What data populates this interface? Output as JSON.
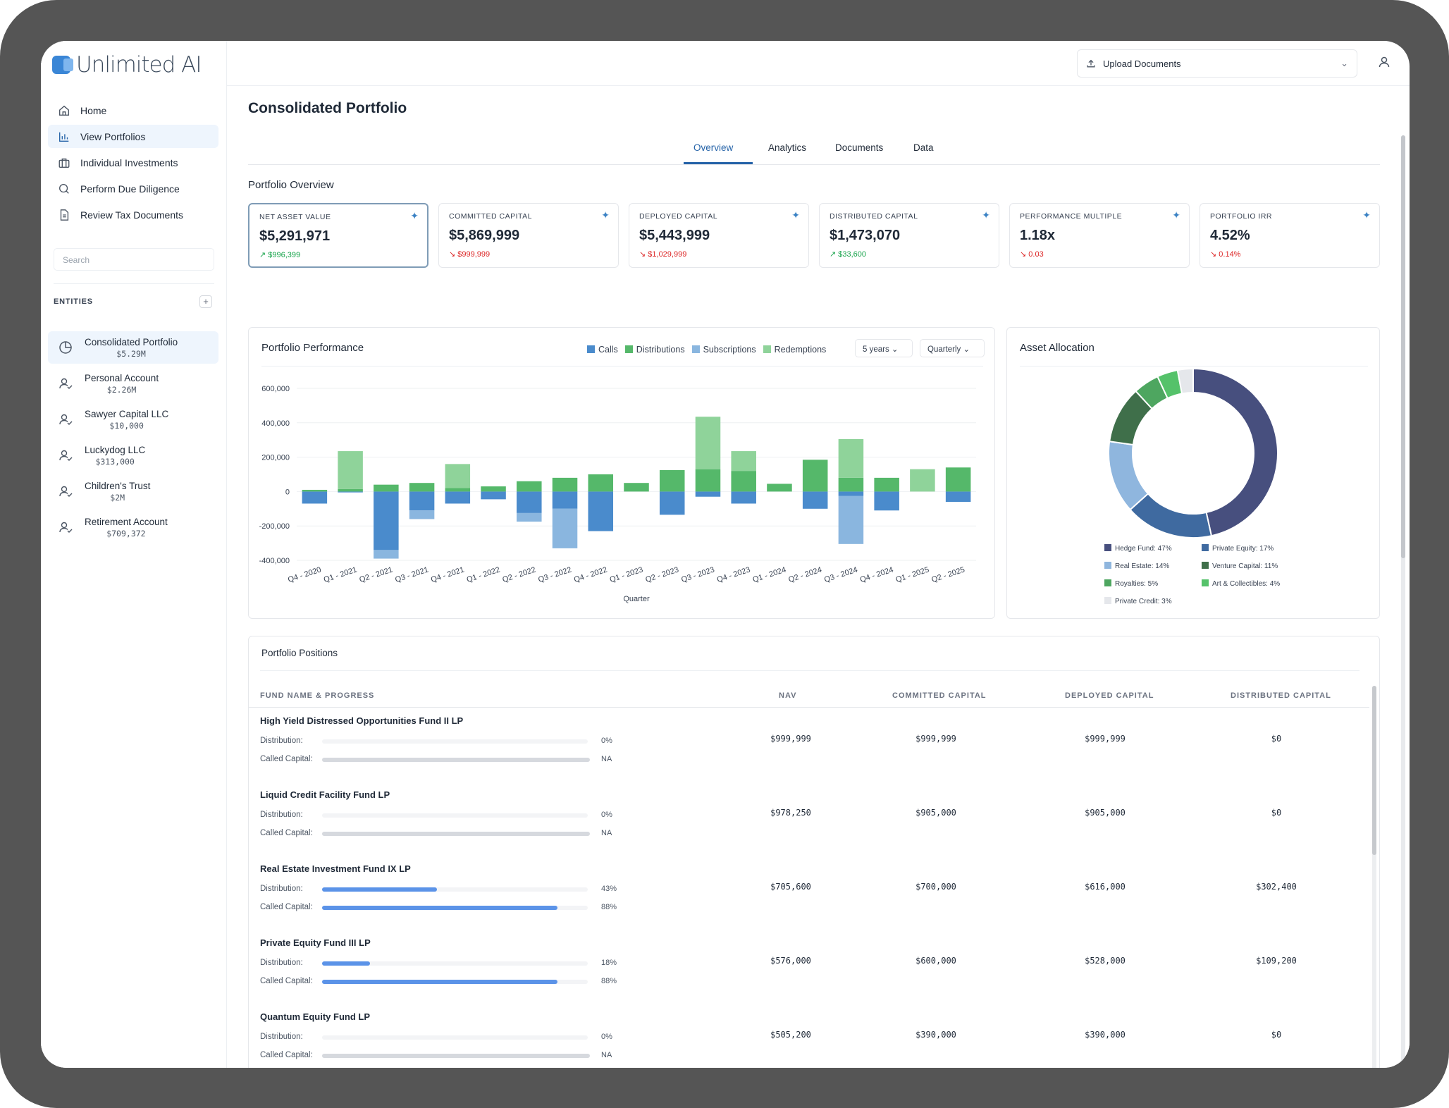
{
  "app": {
    "name": "Unlimited AI"
  },
  "nav": [
    {
      "label": "Home",
      "icon": "home-icon"
    },
    {
      "label": "View Portfolios",
      "icon": "bar-chart-icon"
    },
    {
      "label": "Individual Investments",
      "icon": "briefcase-icon"
    },
    {
      "label": "Perform Due Diligence",
      "icon": "search-icon"
    },
    {
      "label": "Review Tax Documents",
      "icon": "document-icon"
    }
  ],
  "search": {
    "placeholder": "Search"
  },
  "entities": {
    "label": "ENTITIES",
    "add": "+",
    "items": [
      {
        "name": "Consolidated Portfolio",
        "value": "$5.29M"
      },
      {
        "name": "Personal Account",
        "value": "$2.26M"
      },
      {
        "name": "Sawyer Capital LLC",
        "value": "$10,000"
      },
      {
        "name": "Luckydog LLC",
        "value": "$313,000"
      },
      {
        "name": "Children's Trust",
        "value": "$2M"
      },
      {
        "name": "Retirement Account",
        "value": "$709,372"
      }
    ]
  },
  "topbar": {
    "upload_label": "Upload Documents"
  },
  "page": {
    "title": "Consolidated Portfolio",
    "section": "Portfolio Overview"
  },
  "tabs": [
    "Overview",
    "Analytics",
    "Documents",
    "Data"
  ],
  "kpis": [
    {
      "label": "NET ASSET VALUE",
      "value": "$5,291,971",
      "change": "↗ $996,399",
      "dir": "up"
    },
    {
      "label": "COMMITTED CAPITAL",
      "value": "$5,869,999",
      "change": "↘ $999,999",
      "dir": "dn"
    },
    {
      "label": "DEPLOYED CAPITAL",
      "value": "$5,443,999",
      "change": "↘ $1,029,999",
      "dir": "dn"
    },
    {
      "label": "DISTRIBUTED CAPITAL",
      "value": "$1,473,070",
      "change": "↗ $33,600",
      "dir": "up"
    },
    {
      "label": "PERFORMANCE MULTIPLE",
      "value": "1.18x",
      "change": "↘ 0.03",
      "dir": "dn"
    },
    {
      "label": "PORTFOLIO IRR",
      "value": "4.52%",
      "change": "↘ 0.14%",
      "dir": "dn"
    }
  ],
  "performance": {
    "title": "Portfolio Performance",
    "range": "5 years",
    "period": "Quarterly"
  },
  "allocation": {
    "title": "Asset Allocation"
  },
  "chart_data": [
    {
      "type": "bar",
      "stacked": true,
      "title": "Portfolio Performance",
      "xlabel": "Quarter",
      "ylabel": "",
      "ylim": [
        -400000,
        600000
      ],
      "yticks": [
        600000,
        400000,
        200000,
        0,
        -200000,
        -400000
      ],
      "ytick_labels": [
        "600,000",
        "400,000",
        "200,000",
        "0",
        "-200,000",
        "-400,000"
      ],
      "categories": [
        "Q4 - 2020",
        "Q1 - 2021",
        "Q2 - 2021",
        "Q3 - 2021",
        "Q4 - 2021",
        "Q1 - 2022",
        "Q2 - 2022",
        "Q3 - 2022",
        "Q4 - 2022",
        "Q1 - 2023",
        "Q2 - 2023",
        "Q3 - 2023",
        "Q4 - 2023",
        "Q1 - 2024",
        "Q2 - 2024",
        "Q3 - 2024",
        "Q4 - 2024",
        "Q1 - 2025",
        "Q2 - 2025"
      ],
      "xtick_labels": [
        "Q4 - 2020",
        "Q1 - 2021",
        "Q2 - 2021",
        "Q3 - 2021",
        "Q4 - 2021",
        "Q1 - 2022",
        "Q2 - 2022",
        "Q3 - 2022",
        "Q4 - 2022",
        "Q1 - 2023",
        "Q2 - 2023",
        "Q3 - 2023",
        "Q4 - 2023",
        "Q1 - 2024",
        "Q2 - 2024",
        "Q3 - 2024",
        "Q4 - 2024",
        "Q1 - 2025",
        "Q2 - 2025"
      ],
      "series": [
        {
          "name": "Calls",
          "color": "#4a8bcc",
          "values": [
            -70000,
            -5000,
            -340000,
            -110000,
            -70000,
            -45000,
            -125000,
            -100000,
            -230000,
            0,
            -135000,
            -30000,
            -70000,
            0,
            -100000,
            -25000,
            -110000,
            0,
            -60000
          ]
        },
        {
          "name": "Distributions",
          "color": "#55b86a",
          "values": [
            10000,
            15000,
            40000,
            50000,
            20000,
            30000,
            60000,
            80000,
            100000,
            50000,
            125000,
            130000,
            120000,
            45000,
            185000,
            80000,
            80000,
            0,
            140000
          ]
        },
        {
          "name": "Subscriptions",
          "color": "#8ab6df",
          "values": [
            0,
            0,
            -50000,
            -50000,
            0,
            0,
            -50000,
            -230000,
            0,
            0,
            0,
            0,
            0,
            0,
            0,
            -280000,
            0,
            0,
            0
          ]
        },
        {
          "name": "Redemptions",
          "color": "#8fd39a",
          "values": [
            0,
            220000,
            0,
            0,
            140000,
            0,
            0,
            0,
            0,
            0,
            0,
            305000,
            115000,
            0,
            0,
            225000,
            0,
            130000,
            0
          ]
        }
      ],
      "grid": true,
      "legend": "top-right"
    },
    {
      "type": "pie",
      "donut": true,
      "title": "Asset Allocation",
      "labels": [
        "Hedge Fund",
        "Private Equity",
        "Real Estate",
        "Venture Capital",
        "Royalties",
        "Art & Collectibles",
        "Private Credit"
      ],
      "values": [
        47,
        17,
        14,
        11,
        5,
        4,
        3
      ],
      "colors": [
        "#474f7e",
        "#3f6aa0",
        "#8fb6de",
        "#3f6f4a",
        "#4ea660",
        "#55c26a",
        "#e5e7eb"
      ],
      "legend_labels": [
        "Hedge Fund: 47%",
        "Private Equity: 17%",
        "Real Estate: 14%",
        "Venture Capital: 11%",
        "Royalties: 5%",
        "Art & Collectibles: 4%",
        "Private Credit: 3%"
      ],
      "legend": "bottom"
    }
  ],
  "positions": {
    "title": "Portfolio Positions",
    "headers": [
      "FUND NAME & PROGRESS",
      "NAV",
      "COMMITTED CAPITAL",
      "DEPLOYED CAPITAL",
      "DISTRIBUTED CAPITAL"
    ],
    "dist_label": "Distribution:",
    "called_label": "Called Capital:",
    "rows": [
      {
        "name": "High Yield Distressed Opportunities Fund II LP",
        "dist_pct_label": "0%",
        "dist_pct": 0,
        "called_pct_label": "NA",
        "called_pct": 1,
        "called_na": true,
        "nav": "$999,999",
        "committed": "$999,999",
        "deployed": "$999,999",
        "distributed": "$0"
      },
      {
        "name": "Liquid Credit Facility Fund LP",
        "dist_pct_label": "0%",
        "dist_pct": 0,
        "called_pct_label": "NA",
        "called_pct": 1,
        "called_na": true,
        "nav": "$978,250",
        "committed": "$905,000",
        "deployed": "$905,000",
        "distributed": "$0"
      },
      {
        "name": "Real Estate Investment Fund IX LP",
        "dist_pct_label": "43%",
        "dist_pct": 0.43,
        "called_pct_label": "88%",
        "called_pct": 0.88,
        "called_na": false,
        "nav": "$705,600",
        "committed": "$700,000",
        "deployed": "$616,000",
        "distributed": "$302,400"
      },
      {
        "name": "Private Equity Fund III LP",
        "dist_pct_label": "18%",
        "dist_pct": 0.18,
        "called_pct_label": "88%",
        "called_pct": 0.88,
        "called_na": false,
        "nav": "$576,000",
        "committed": "$600,000",
        "deployed": "$528,000",
        "distributed": "$109,200"
      },
      {
        "name": "Quantum Equity Fund LP",
        "dist_pct_label": "0%",
        "dist_pct": 0,
        "called_pct_label": "NA",
        "called_pct": 1,
        "called_na": true,
        "nav": "$505,200",
        "committed": "$390,000",
        "deployed": "$390,000",
        "distributed": "$0"
      }
    ]
  }
}
